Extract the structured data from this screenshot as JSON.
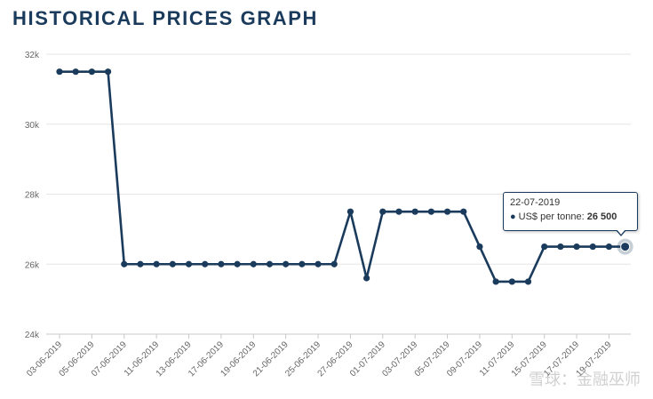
{
  "title": "HISTORICAL PRICES GRAPH",
  "colors": {
    "line": "#1b3b5c",
    "grid": "#e6e6e6",
    "axis_text": "#666666",
    "background": "#ffffff"
  },
  "tooltip": {
    "date": "22-07-2019",
    "series_label": "US$ per tonne:",
    "value": "26 500"
  },
  "watermark": "雪球：金融巫师",
  "chart_data": {
    "type": "line",
    "title": "HISTORICAL PRICES GRAPH",
    "xlabel": "",
    "ylabel": "",
    "ylim": [
      24000,
      32000
    ],
    "y_ticks": [
      24000,
      26000,
      28000,
      30000,
      32000
    ],
    "y_tick_labels": [
      "24k",
      "26k",
      "28k",
      "30k",
      "32k"
    ],
    "grid": true,
    "legend": "none",
    "x_tick_labels": [
      "03-06-2019",
      "05-06-2019",
      "07-06-2019",
      "11-06-2019",
      "13-06-2019",
      "17-06-2019",
      "19-06-2019",
      "21-06-2019",
      "25-06-2019",
      "27-06-2019",
      "01-07-2019",
      "03-07-2019",
      "05-07-2019",
      "09-07-2019",
      "11-07-2019",
      "15-07-2019",
      "17-07-2019",
      "19-07-2019"
    ],
    "x": [
      "03-06-2019",
      "04-06-2019",
      "05-06-2019",
      "06-06-2019",
      "07-06-2019",
      "10-06-2019",
      "11-06-2019",
      "12-06-2019",
      "13-06-2019",
      "14-06-2019",
      "17-06-2019",
      "18-06-2019",
      "19-06-2019",
      "20-06-2019",
      "21-06-2019",
      "24-06-2019",
      "25-06-2019",
      "26-06-2019",
      "27-06-2019",
      "28-06-2019",
      "01-07-2019",
      "02-07-2019",
      "03-07-2019",
      "04-07-2019",
      "05-07-2019",
      "08-07-2019",
      "09-07-2019",
      "10-07-2019",
      "11-07-2019",
      "12-07-2019",
      "15-07-2019",
      "16-07-2019",
      "17-07-2019",
      "18-07-2019",
      "19-07-2019",
      "22-07-2019"
    ],
    "series": [
      {
        "name": "US$ per tonne",
        "values": [
          31500,
          31500,
          31500,
          31500,
          26000,
          26000,
          26000,
          26000,
          26000,
          26000,
          26000,
          26000,
          26000,
          26000,
          26000,
          26000,
          26000,
          26000,
          27500,
          25600,
          27500,
          27500,
          27500,
          27500,
          27500,
          27500,
          26500,
          25500,
          25500,
          25500,
          26500,
          26500,
          26500,
          26500,
          26500,
          26500
        ]
      }
    ]
  }
}
